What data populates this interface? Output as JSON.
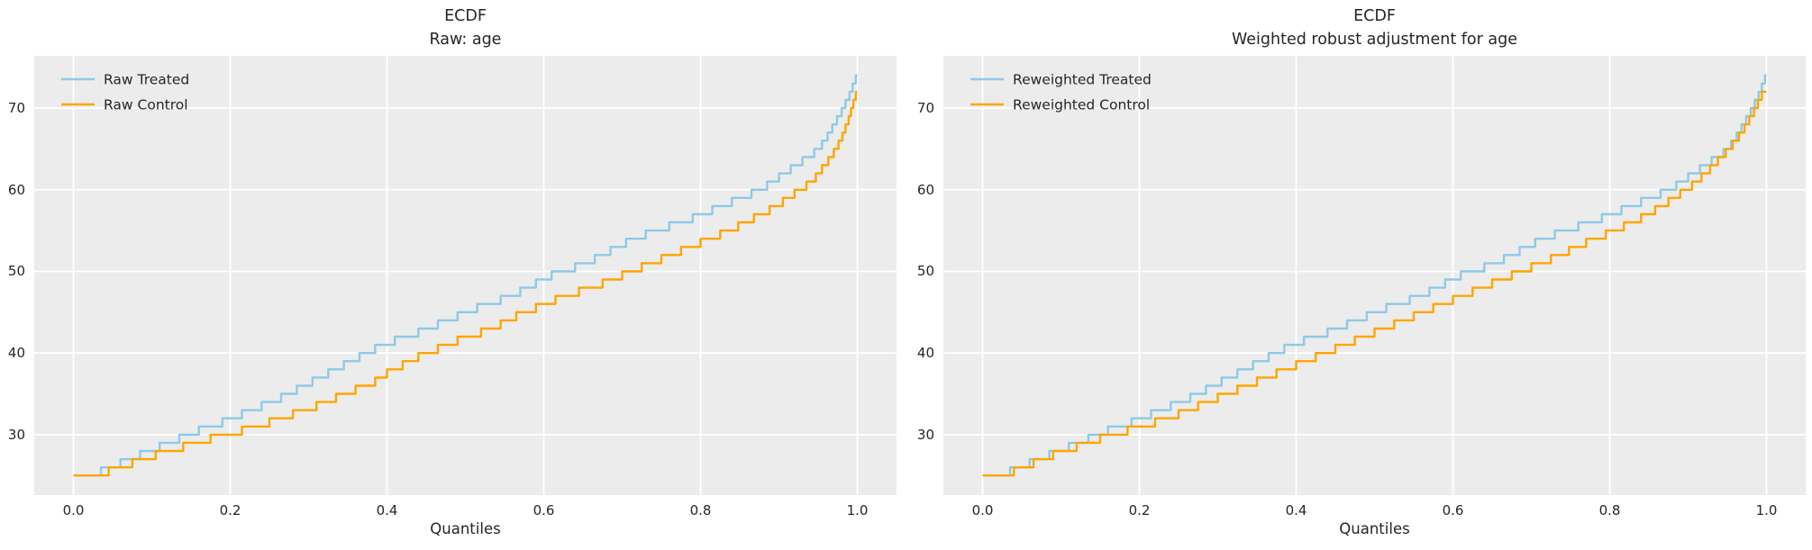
{
  "figure": {
    "background": "#ffffff",
    "axes_background": "#ececec",
    "grid_color": "#ffffff",
    "text_color": "#262626",
    "treated_color": "#8fc9e6",
    "control_color": "#ffa500"
  },
  "chart_data": [
    {
      "type": "line",
      "line_style": "step-post",
      "title_line1": "ECDF",
      "title_line2": "Raw: age",
      "xlabel": "Quantiles",
      "grid": true,
      "legend_position": "upper left",
      "xlim": [
        -0.05,
        1.05
      ],
      "ylim": [
        22.6,
        76.4
      ],
      "xtick_values": [
        0.0,
        0.2,
        0.4,
        0.6,
        0.8,
        1.0
      ],
      "xtick_labels": [
        "0.0",
        "0.2",
        "0.4",
        "0.6",
        "0.8",
        "1.0"
      ],
      "ytick_values": [
        30,
        40,
        50,
        60,
        70
      ],
      "ytick_labels": [
        "30",
        "40",
        "50",
        "60",
        "70"
      ],
      "series": [
        {
          "name": "Raw Treated",
          "color": "#8fc9e6",
          "points": [
            [
              0,
              25
            ],
            [
              0.035,
              26
            ],
            [
              0.06,
              27
            ],
            [
              0.085,
              28
            ],
            [
              0.11,
              29
            ],
            [
              0.135,
              30
            ],
            [
              0.16,
              31
            ],
            [
              0.19,
              32
            ],
            [
              0.215,
              33
            ],
            [
              0.24,
              34
            ],
            [
              0.265,
              35
            ],
            [
              0.285,
              36
            ],
            [
              0.305,
              37
            ],
            [
              0.325,
              38
            ],
            [
              0.345,
              39
            ],
            [
              0.365,
              40
            ],
            [
              0.385,
              41
            ],
            [
              0.41,
              42
            ],
            [
              0.44,
              43
            ],
            [
              0.465,
              44
            ],
            [
              0.49,
              45
            ],
            [
              0.515,
              46
            ],
            [
              0.545,
              47
            ],
            [
              0.57,
              48
            ],
            [
              0.59,
              49
            ],
            [
              0.61,
              50
            ],
            [
              0.64,
              51
            ],
            [
              0.665,
              52
            ],
            [
              0.685,
              53
            ],
            [
              0.705,
              54
            ],
            [
              0.73,
              55
            ],
            [
              0.76,
              56
            ],
            [
              0.79,
              57
            ],
            [
              0.815,
              58
            ],
            [
              0.84,
              59
            ],
            [
              0.865,
              60
            ],
            [
              0.885,
              61
            ],
            [
              0.9,
              62
            ],
            [
              0.915,
              63
            ],
            [
              0.93,
              64
            ],
            [
              0.945,
              65
            ],
            [
              0.955,
              66
            ],
            [
              0.962,
              67
            ],
            [
              0.968,
              68
            ],
            [
              0.974,
              69
            ],
            [
              0.98,
              70
            ],
            [
              0.985,
              71
            ],
            [
              0.99,
              72
            ],
            [
              0.994,
              73
            ],
            [
              0.998,
              74
            ],
            [
              1.0,
              74
            ]
          ]
        },
        {
          "name": "Raw Control",
          "color": "#ffa500",
          "points": [
            [
              0,
              25
            ],
            [
              0.045,
              26
            ],
            [
              0.075,
              27
            ],
            [
              0.105,
              28
            ],
            [
              0.14,
              29
            ],
            [
              0.175,
              30
            ],
            [
              0.215,
              31
            ],
            [
              0.25,
              32
            ],
            [
              0.28,
              33
            ],
            [
              0.31,
              34
            ],
            [
              0.335,
              35
            ],
            [
              0.36,
              36
            ],
            [
              0.385,
              37
            ],
            [
              0.4,
              38
            ],
            [
              0.42,
              39
            ],
            [
              0.44,
              40
            ],
            [
              0.465,
              41
            ],
            [
              0.49,
              42
            ],
            [
              0.52,
              43
            ],
            [
              0.545,
              44
            ],
            [
              0.565,
              45
            ],
            [
              0.59,
              46
            ],
            [
              0.615,
              47
            ],
            [
              0.645,
              48
            ],
            [
              0.675,
              49
            ],
            [
              0.7,
              50
            ],
            [
              0.725,
              51
            ],
            [
              0.75,
              52
            ],
            [
              0.775,
              53
            ],
            [
              0.8,
              54
            ],
            [
              0.825,
              55
            ],
            [
              0.848,
              56
            ],
            [
              0.868,
              57
            ],
            [
              0.888,
              58
            ],
            [
              0.905,
              59
            ],
            [
              0.92,
              60
            ],
            [
              0.935,
              61
            ],
            [
              0.947,
              62
            ],
            [
              0.955,
              63
            ],
            [
              0.963,
              64
            ],
            [
              0.97,
              65
            ],
            [
              0.976,
              66
            ],
            [
              0.981,
              67
            ],
            [
              0.985,
              68
            ],
            [
              0.989,
              69
            ],
            [
              0.992,
              70
            ],
            [
              0.995,
              71
            ],
            [
              0.998,
              72
            ],
            [
              1.0,
              72
            ]
          ]
        }
      ]
    },
    {
      "type": "line",
      "line_style": "step-post",
      "title_line1": "ECDF",
      "title_line2": "Weighted robust adjustment for age",
      "xlabel": "Quantiles",
      "grid": true,
      "legend_position": "upper left",
      "xlim": [
        -0.05,
        1.05
      ],
      "ylim": [
        22.6,
        76.4
      ],
      "xtick_values": [
        0.0,
        0.2,
        0.4,
        0.6,
        0.8,
        1.0
      ],
      "xtick_labels": [
        "0.0",
        "0.2",
        "0.4",
        "0.6",
        "0.8",
        "1.0"
      ],
      "ytick_values": [
        30,
        40,
        50,
        60,
        70
      ],
      "ytick_labels": [
        "30",
        "40",
        "50",
        "60",
        "70"
      ],
      "series": [
        {
          "name": "Reweighted Treated",
          "color": "#8fc9e6",
          "points": [
            [
              0,
              25
            ],
            [
              0.035,
              26
            ],
            [
              0.06,
              27
            ],
            [
              0.085,
              28
            ],
            [
              0.11,
              29
            ],
            [
              0.135,
              30
            ],
            [
              0.16,
              31
            ],
            [
              0.19,
              32
            ],
            [
              0.215,
              33
            ],
            [
              0.24,
              34
            ],
            [
              0.265,
              35
            ],
            [
              0.285,
              36
            ],
            [
              0.305,
              37
            ],
            [
              0.325,
              38
            ],
            [
              0.345,
              39
            ],
            [
              0.365,
              40
            ],
            [
              0.385,
              41
            ],
            [
              0.41,
              42
            ],
            [
              0.44,
              43
            ],
            [
              0.465,
              44
            ],
            [
              0.49,
              45
            ],
            [
              0.515,
              46
            ],
            [
              0.545,
              47
            ],
            [
              0.57,
              48
            ],
            [
              0.59,
              49
            ],
            [
              0.61,
              50
            ],
            [
              0.64,
              51
            ],
            [
              0.665,
              52
            ],
            [
              0.685,
              53
            ],
            [
              0.705,
              54
            ],
            [
              0.73,
              55
            ],
            [
              0.76,
              56
            ],
            [
              0.79,
              57
            ],
            [
              0.815,
              58
            ],
            [
              0.84,
              59
            ],
            [
              0.865,
              60
            ],
            [
              0.885,
              61
            ],
            [
              0.9,
              62
            ],
            [
              0.915,
              63
            ],
            [
              0.93,
              64
            ],
            [
              0.945,
              65
            ],
            [
              0.955,
              66
            ],
            [
              0.962,
              67
            ],
            [
              0.968,
              68
            ],
            [
              0.974,
              69
            ],
            [
              0.98,
              70
            ],
            [
              0.985,
              71
            ],
            [
              0.99,
              72
            ],
            [
              0.994,
              73
            ],
            [
              0.998,
              74
            ],
            [
              1.0,
              74
            ]
          ]
        },
        {
          "name": "Reweighted Control",
          "color": "#ffa500",
          "points": [
            [
              0,
              25
            ],
            [
              0.04,
              26
            ],
            [
              0.065,
              27
            ],
            [
              0.09,
              28
            ],
            [
              0.12,
              29
            ],
            [
              0.15,
              30
            ],
            [
              0.185,
              31
            ],
            [
              0.22,
              32
            ],
            [
              0.25,
              33
            ],
            [
              0.275,
              34
            ],
            [
              0.3,
              35
            ],
            [
              0.325,
              36
            ],
            [
              0.35,
              37
            ],
            [
              0.375,
              38
            ],
            [
              0.4,
              39
            ],
            [
              0.425,
              40
            ],
            [
              0.45,
              41
            ],
            [
              0.475,
              42
            ],
            [
              0.5,
              43
            ],
            [
              0.525,
              44
            ],
            [
              0.55,
              45
            ],
            [
              0.575,
              46
            ],
            [
              0.6,
              47
            ],
            [
              0.625,
              48
            ],
            [
              0.65,
              49
            ],
            [
              0.675,
              50
            ],
            [
              0.7,
              51
            ],
            [
              0.725,
              52
            ],
            [
              0.748,
              53
            ],
            [
              0.77,
              54
            ],
            [
              0.795,
              55
            ],
            [
              0.818,
              56
            ],
            [
              0.84,
              57
            ],
            [
              0.858,
              58
            ],
            [
              0.875,
              59
            ],
            [
              0.89,
              60
            ],
            [
              0.905,
              61
            ],
            [
              0.917,
              62
            ],
            [
              0.928,
              63
            ],
            [
              0.938,
              64
            ],
            [
              0.948,
              65
            ],
            [
              0.957,
              66
            ],
            [
              0.965,
              67
            ],
            [
              0.972,
              68
            ],
            [
              0.978,
              69
            ],
            [
              0.984,
              70
            ],
            [
              0.989,
              71
            ],
            [
              0.994,
              72
            ],
            [
              1.0,
              72
            ]
          ]
        }
      ]
    }
  ]
}
